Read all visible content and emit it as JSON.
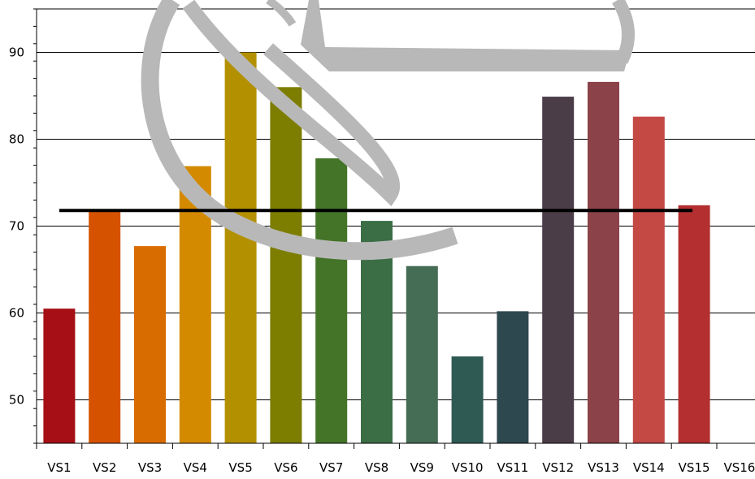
{
  "chart_data": {
    "type": "bar",
    "title": "",
    "xlabel": "",
    "ylabel": "",
    "categories": [
      "VS1",
      "VS2",
      "VS3",
      "VS4",
      "VS5",
      "VS6",
      "VS7",
      "VS8",
      "VS9",
      "VS10",
      "VS11",
      "VS12",
      "VS13",
      "VS14",
      "VS15",
      "VS16"
    ],
    "values": [
      60.5,
      71.8,
      67.7,
      76.9,
      90.0,
      86.0,
      77.8,
      70.6,
      65.4,
      55.0,
      60.2,
      84.9,
      86.6,
      82.6,
      72.4,
      null
    ],
    "bar_colors": [
      "#a50f15",
      "#d55300",
      "#d96c00",
      "#d48a00",
      "#b39000",
      "#7d7d00",
      "#437428",
      "#3b6e45",
      "#456c55",
      "#2f5a54",
      "#2e4850",
      "#4b3d48",
      "#8b4249",
      "#c44844",
      "#b42f30",
      ""
    ],
    "reference_line": {
      "value": 71.8,
      "color": "#000000"
    },
    "ylim": [
      45,
      95
    ],
    "yticks": [
      50,
      60,
      70,
      80,
      90
    ],
    "grid": true,
    "legend": "none"
  },
  "watermark": {
    "color": "#b8b8b8"
  }
}
